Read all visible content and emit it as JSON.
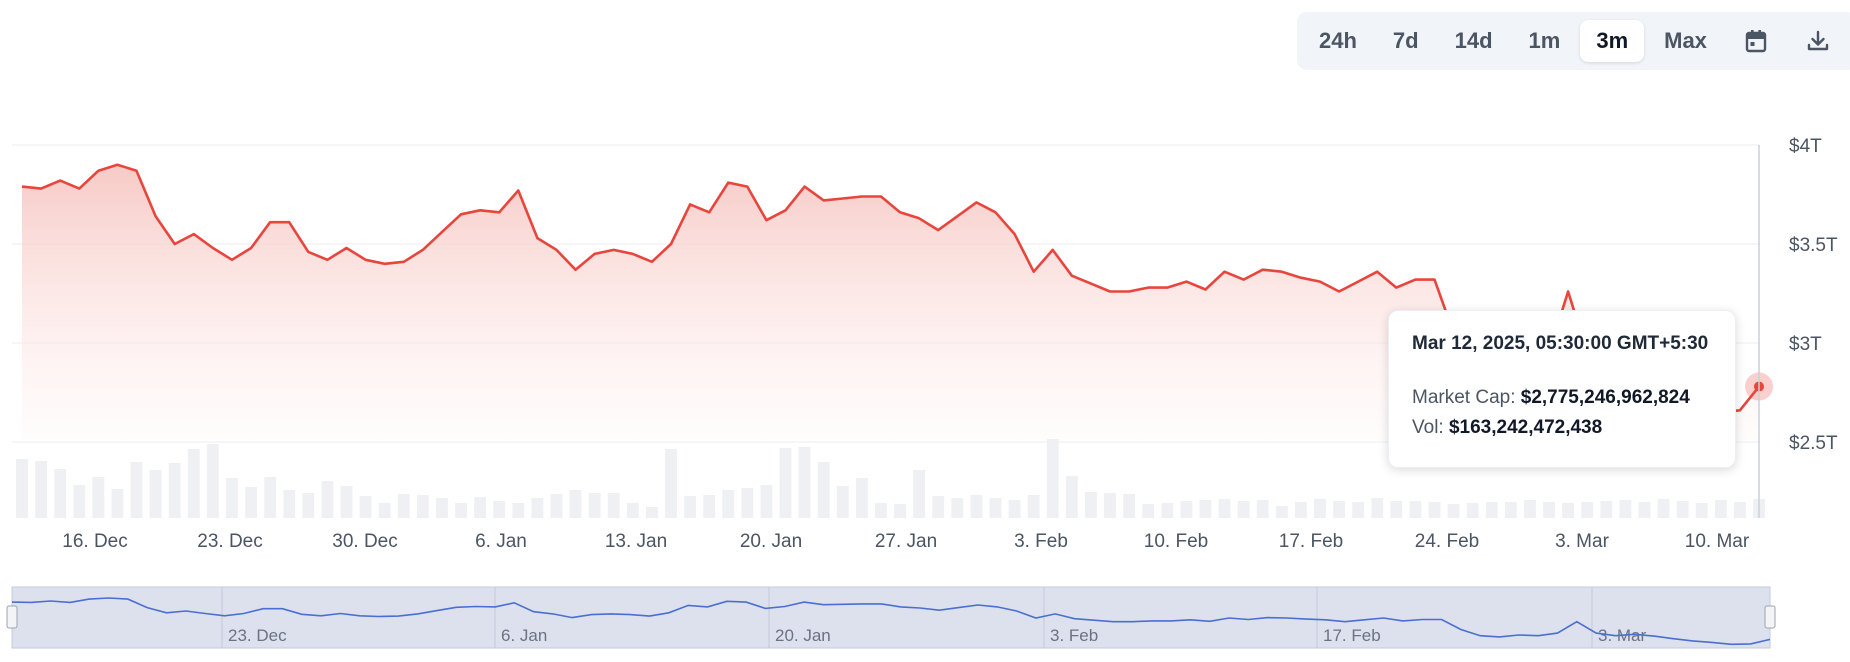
{
  "toolbar": {
    "ranges": [
      "24h",
      "7d",
      "14d",
      "1m",
      "3m",
      "Max"
    ],
    "active_range": "3m",
    "icons": [
      "calendar-icon",
      "download-icon"
    ]
  },
  "tooltip": {
    "date": "Mar 12, 2025, 05:30:00 GMT+5:30",
    "market_cap_label": "Market Cap:",
    "market_cap_value": "$2,775,246,962,824",
    "vol_label": "Vol:",
    "vol_value": "$163,242,472,438"
  },
  "colors": {
    "line": "#e8453c",
    "area_top": "#f6c7c3",
    "volume": "#eef0f4",
    "navigator_fill": "#dde1ee",
    "navigator_line": "#4a6fd1"
  },
  "chart_data": {
    "type": "area",
    "y_axis": {
      "ticks": [
        "$2.5T",
        "$3T",
        "$3.5T",
        "$4T"
      ],
      "tick_values": [
        2.5,
        3,
        3.5,
        4
      ],
      "unit": "T"
    },
    "x_axis": {
      "ticks": [
        "16. Dec",
        "23. Dec",
        "30. Dec",
        "6. Jan",
        "13. Jan",
        "20. Jan",
        "27. Jan",
        "3. Feb",
        "10. Feb",
        "17. Feb",
        "24. Feb",
        "3. Mar",
        "10. Mar"
      ]
    },
    "navigator_ticks": [
      "23. Dec",
      "6. Jan",
      "20. Jan",
      "3. Feb",
      "17. Feb",
      "3. Mar"
    ],
    "series": [
      {
        "values": [
          3.79,
          3.78,
          3.82,
          3.78,
          3.87,
          3.9,
          3.87,
          3.64,
          3.5,
          3.55,
          3.48,
          3.42,
          3.48,
          3.61,
          3.61,
          3.46,
          3.42,
          3.48,
          3.42,
          3.4,
          3.41,
          3.47,
          3.56,
          3.65,
          3.67,
          3.66,
          3.77,
          3.53,
          3.47,
          3.37,
          3.45,
          3.47,
          3.45,
          3.41,
          3.5,
          3.7,
          3.66,
          3.81,
          3.79,
          3.62,
          3.67,
          3.79,
          3.72,
          3.73,
          3.74,
          3.74,
          3.66,
          3.63,
          3.57,
          3.64,
          3.71,
          3.66,
          3.55,
          3.36,
          3.47,
          3.34,
          3.3,
          3.26,
          3.26,
          3.28,
          3.28,
          3.31,
          3.27,
          3.36,
          3.32,
          3.37,
          3.36,
          3.33,
          3.31,
          3.26,
          3.31,
          3.36,
          3.28,
          3.32,
          3.32,
          3.05,
          2.88,
          2.85,
          2.9,
          2.88,
          2.95,
          3.26,
          2.95,
          2.88,
          2.92,
          2.87,
          2.8,
          2.74,
          2.7,
          2.65,
          2.66,
          2.78
        ],
        "volume": [
          59,
          57,
          49,
          33,
          41,
          29,
          56,
          48,
          55,
          69,
          74,
          40,
          31,
          41,
          28,
          25,
          37,
          32,
          22,
          15,
          24,
          23,
          20,
          15,
          21,
          17,
          15,
          20,
          24,
          28,
          25,
          25,
          15,
          11,
          69,
          22,
          23,
          28,
          30,
          33,
          70,
          71,
          56,
          32,
          40,
          15,
          14,
          48,
          22,
          20,
          23,
          20,
          18,
          23,
          79,
          42,
          26,
          25,
          24,
          14,
          15,
          17,
          18,
          19,
          17,
          18,
          12,
          16,
          19,
          17,
          16,
          20,
          17,
          17,
          16,
          14,
          15,
          16,
          16,
          18,
          16,
          15,
          16,
          17,
          18,
          16,
          19,
          17,
          15,
          18,
          16,
          19
        ]
      }
    ],
    "grid": true,
    "legend": "none"
  }
}
